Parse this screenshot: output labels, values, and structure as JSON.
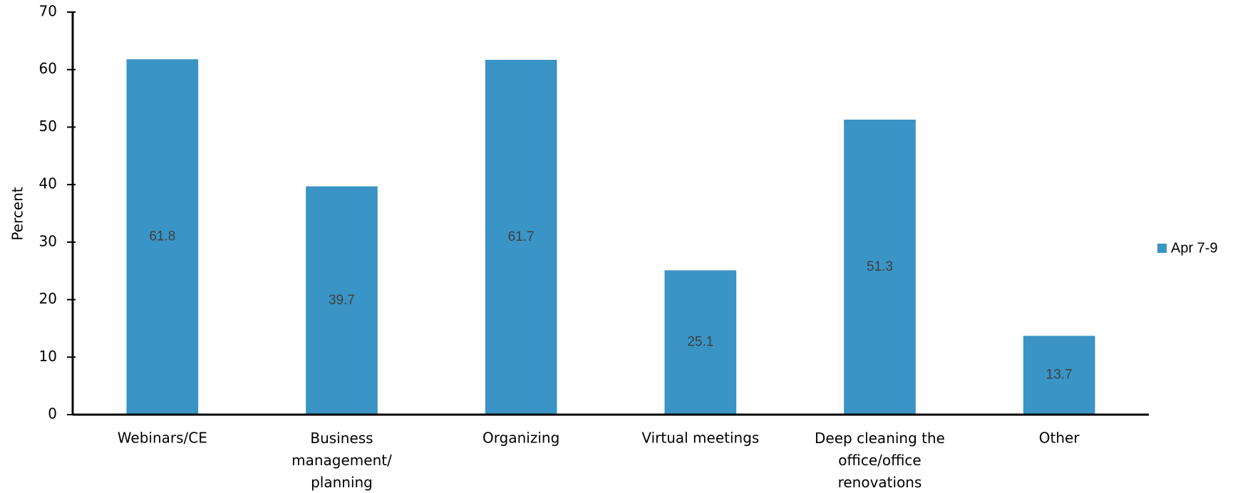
{
  "chart_data": {
    "type": "bar",
    "y_label": "Percent",
    "categories": [
      "Webinars/CE",
      "Business\nmanagement/\nplanning",
      "Organizing",
      "Virtual meetings",
      "Deep cleaning the\noffice/office\nrenovations",
      "Other"
    ],
    "series": [
      {
        "name": "Apr 7-9",
        "color": "#3a94c5",
        "values": [
          61.8,
          39.7,
          61.7,
          25.1,
          51.3,
          13.7
        ]
      }
    ],
    "ylim": [
      0,
      70
    ],
    "yticks": [
      0,
      10,
      20,
      30,
      40,
      50,
      60,
      70
    ],
    "data_labels": true,
    "legend": "right"
  }
}
